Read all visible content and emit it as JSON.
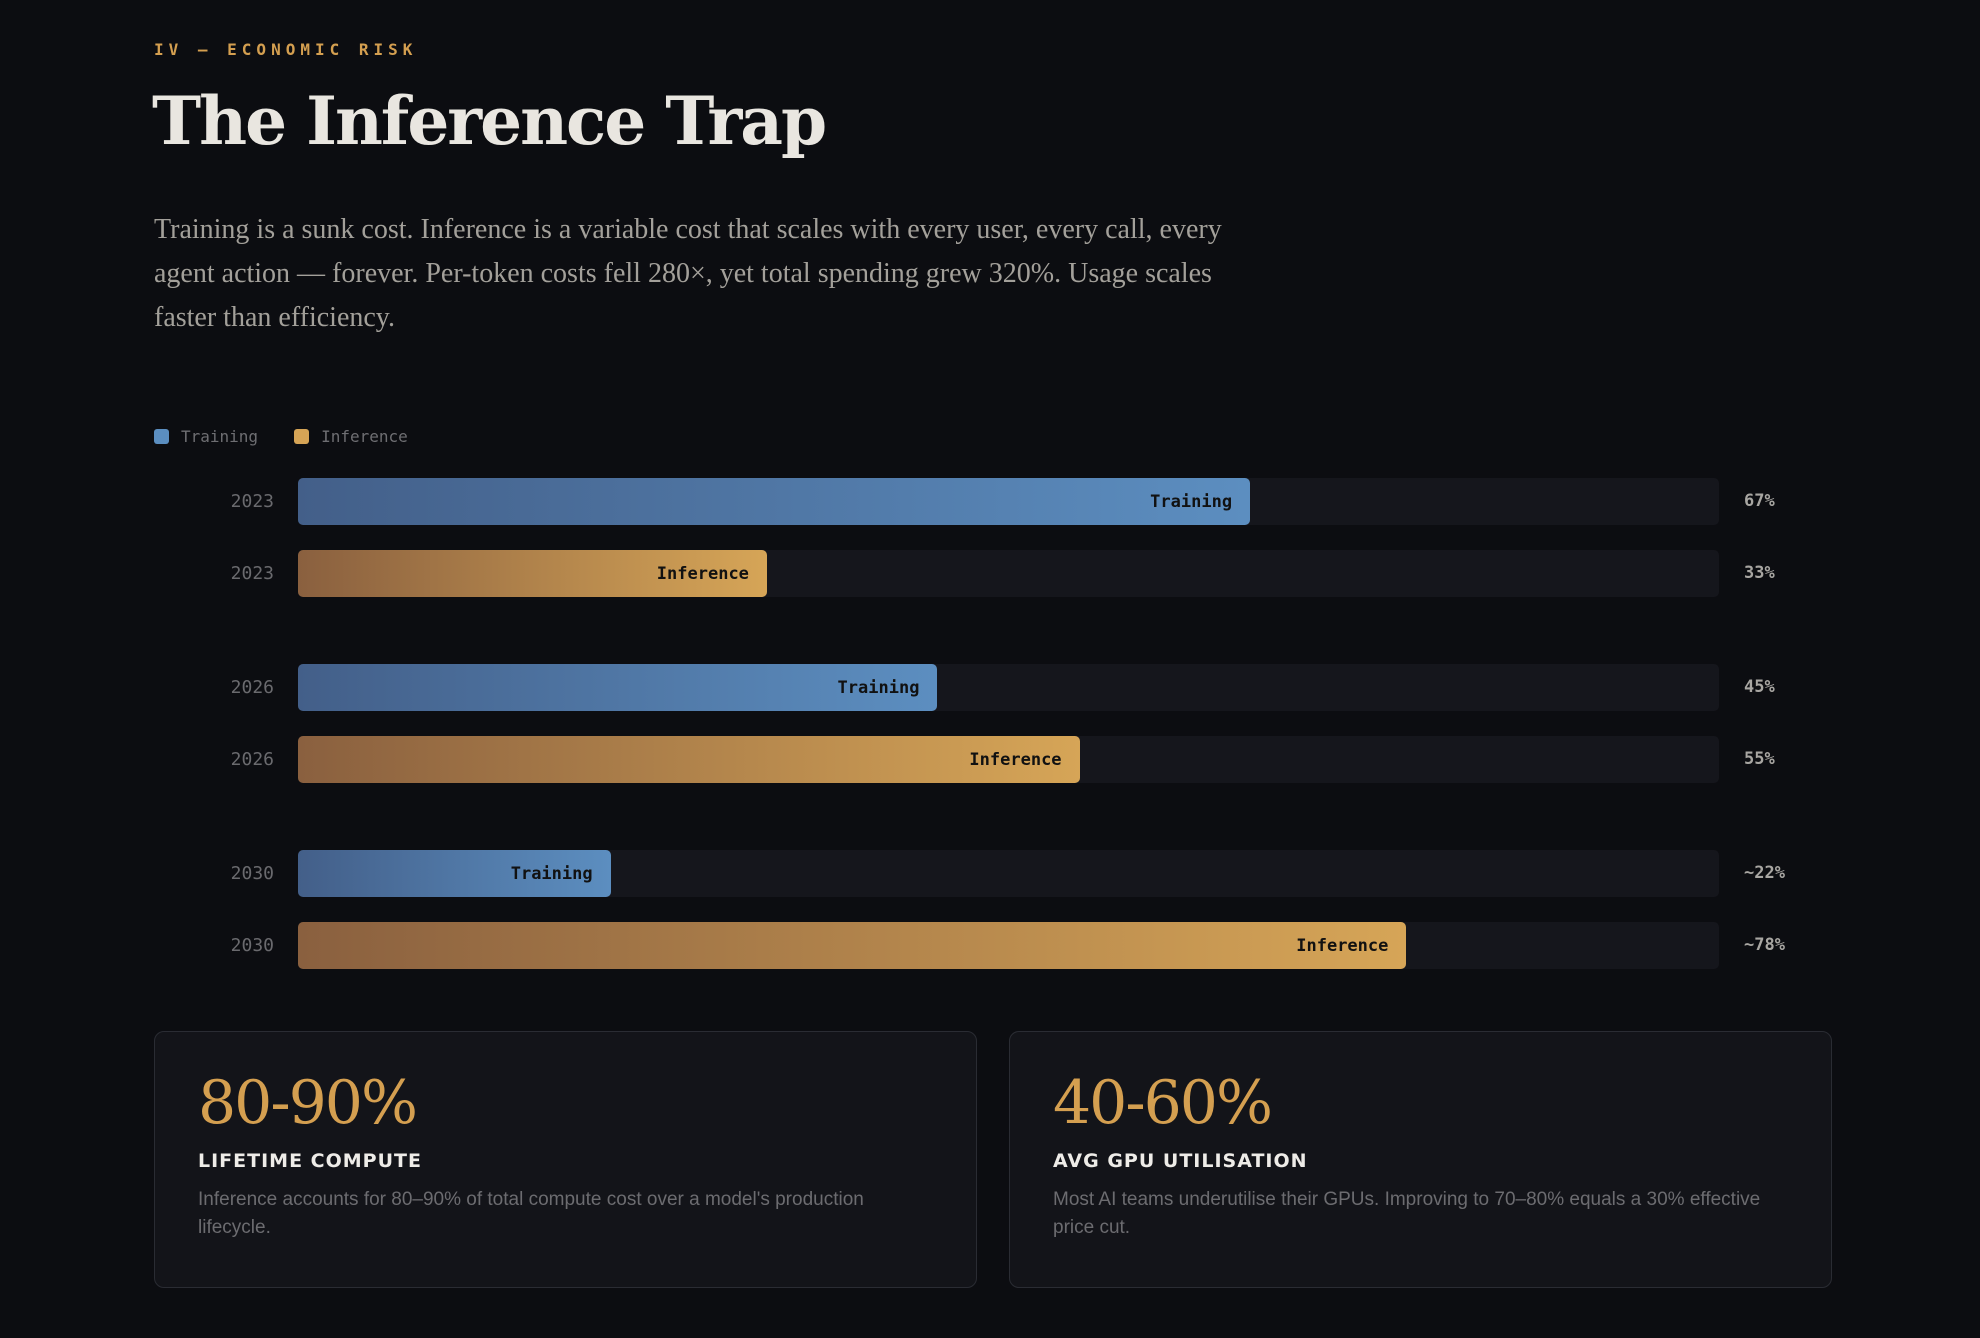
{
  "header": {
    "eyebrow": "IV — ECONOMIC RISK",
    "title": "The Inference Trap",
    "lede": "Training is a sunk cost. Inference is a variable cost that scales with every user, every call, every agent action — forever. Per-token costs fell 280×, yet total spending grew 320%. Usage scales faster than efficiency."
  },
  "chart_data": {
    "type": "bar",
    "orientation": "horizontal",
    "legend": [
      {
        "name": "Training",
        "color": "#5b8ec0"
      },
      {
        "name": "Inference",
        "color": "#d6a456"
      }
    ],
    "xlim": [
      0,
      100
    ],
    "rows": [
      {
        "year": "2023",
        "series": "Training",
        "value": 67,
        "label": "67%"
      },
      {
        "year": "2023",
        "series": "Inference",
        "value": 33,
        "label": "33%"
      },
      {
        "year": "2026",
        "series": "Training",
        "value": 45,
        "label": "45%"
      },
      {
        "year": "2026",
        "series": "Inference",
        "value": 55,
        "label": "55%"
      },
      {
        "year": "2030",
        "series": "Training",
        "value": 22,
        "label": "~22%"
      },
      {
        "year": "2030",
        "series": "Inference",
        "value": 78,
        "label": "~78%"
      }
    ]
  },
  "cards": [
    {
      "value": "80-90%",
      "label": "LIFETIME COMPUTE",
      "desc": "Inference accounts for 80–90% of total compute cost over a model's production lifecycle."
    },
    {
      "value": "40-60%",
      "label": "AVG GPU UTILISATION",
      "desc": "Most AI teams underutilise their GPUs. Improving to 70–80% equals a 30% effective price cut."
    }
  ]
}
